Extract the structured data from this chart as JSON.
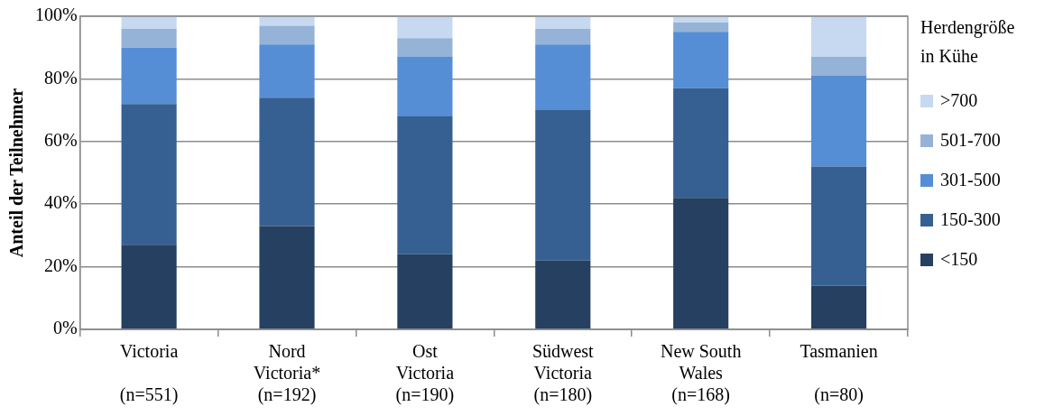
{
  "chart_data": {
    "type": "bar",
    "stacked": true,
    "ylabel": "Anteil der Teilnehmer",
    "legend_title": "Herdengröße\nin Kühe",
    "categories": [
      "Victoria\n\n(n=551)",
      "Nord\nVictoria*\n(n=192)",
      "Ost\nVictoria\n(n=190)",
      "Südwest\nVictoria\n(n=180)",
      "New South\nWales\n(n=168)",
      "Tasmanien\n\n(n=80)"
    ],
    "series": [
      {
        "name": "<150",
        "color": "#254061",
        "values": [
          27,
          33,
          24,
          22,
          42,
          14
        ]
      },
      {
        "name": "150-300",
        "color": "#366092",
        "values": [
          45,
          41,
          44,
          48,
          35,
          38
        ]
      },
      {
        "name": "301-500",
        "color": "#558ed5",
        "values": [
          18,
          17,
          19,
          21,
          18,
          29
        ]
      },
      {
        "name": "501-700",
        "color": "#95b3d7",
        "values": [
          6,
          6,
          6,
          5,
          3,
          6
        ]
      },
      {
        "name": ">700",
        "color": "#c6d9f1",
        "values": [
          4,
          3,
          7,
          4,
          2,
          13
        ]
      }
    ],
    "ylim": [
      0,
      100
    ],
    "yticks": [
      {
        "value": 0,
        "label": "0%"
      },
      {
        "value": 20,
        "label": "20%"
      },
      {
        "value": 40,
        "label": "40%"
      },
      {
        "value": 60,
        "label": "60%"
      },
      {
        "value": 80,
        "label": "80%"
      },
      {
        "value": 100,
        "label": "100%"
      }
    ],
    "grid": "y",
    "legend": "right"
  }
}
